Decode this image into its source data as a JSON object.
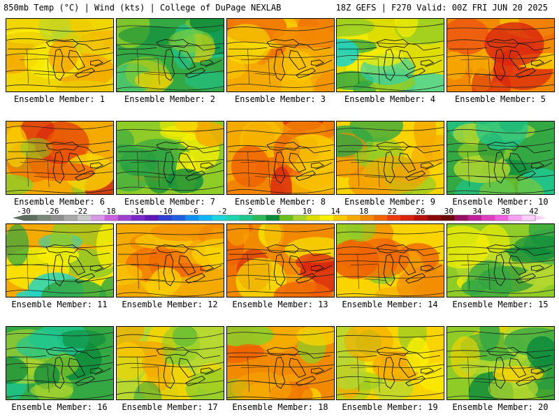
{
  "header": {
    "left": "850mb Temp (°C) | Wind (kts) | College of DuPage NEXLAB",
    "right": "18Z GEFS | F270 Valid: 00Z FRI JUN 20 2025"
  },
  "member_caption_prefix": "Ensemble Member: ",
  "members": [
    {
      "n": "1",
      "palette": [
        "#f2d600",
        "#f5aa00",
        "#ecc800",
        "#f9ef00",
        "#b6d830"
      ]
    },
    {
      "n": "2",
      "palette": [
        "#33a843",
        "#1fc68e",
        "#8fcc28",
        "#f0d000",
        "#0d8b3c"
      ]
    },
    {
      "n": "3",
      "palette": [
        "#f5aa00",
        "#f28a00",
        "#f9c800",
        "#ef6400",
        "#f6e800"
      ]
    },
    {
      "n": "4",
      "palette": [
        "#dfdc00",
        "#8fcc28",
        "#f9ef00",
        "#33a843",
        "#22d4c4"
      ]
    },
    {
      "n": "5",
      "palette": [
        "#f28a00",
        "#ef5a10",
        "#d9230f",
        "#f5aa00",
        "#f9d400"
      ]
    },
    {
      "n": "6",
      "palette": [
        "#f5aa00",
        "#8fcc28",
        "#ef6400",
        "#d9230f",
        "#f9d400"
      ]
    },
    {
      "n": "7",
      "palette": [
        "#8fcc28",
        "#33a843",
        "#f9ef00",
        "#f5aa00",
        "#0d8b3c"
      ]
    },
    {
      "n": "8",
      "palette": [
        "#f5aa00",
        "#ef6400",
        "#f28a00",
        "#f9c800",
        "#d9230f"
      ]
    },
    {
      "n": "9",
      "palette": [
        "#f9d400",
        "#8fcc28",
        "#f5aa00",
        "#f28a00",
        "#33a843"
      ]
    },
    {
      "n": "10",
      "palette": [
        "#33a843",
        "#0d8b3c",
        "#1fc68e",
        "#8fcc28",
        "#b6d830"
      ]
    },
    {
      "n": "11",
      "palette": [
        "#f5aa00",
        "#8fcc28",
        "#f9ef00",
        "#22d4c4",
        "#33a843"
      ]
    },
    {
      "n": "12",
      "palette": [
        "#f5aa00",
        "#f28a00",
        "#f9c800",
        "#ef6400",
        "#f9d400"
      ]
    },
    {
      "n": "13",
      "palette": [
        "#f28a00",
        "#ef6400",
        "#f5aa00",
        "#f9ef00",
        "#d9230f"
      ]
    },
    {
      "n": "14",
      "palette": [
        "#f9d400",
        "#f28a00",
        "#ef6400",
        "#8fcc28",
        "#f5aa00"
      ]
    },
    {
      "n": "15",
      "palette": [
        "#8fcc28",
        "#b6d830",
        "#33a843",
        "#f9ef00",
        "#0d8b3c"
      ]
    },
    {
      "n": "16",
      "palette": [
        "#33a843",
        "#0d8b3c",
        "#1fc68e",
        "#8fcc28",
        "#b6d830"
      ]
    },
    {
      "n": "17",
      "palette": [
        "#b6d830",
        "#f9d400",
        "#f5aa00",
        "#8fcc28",
        "#33a843"
      ]
    },
    {
      "n": "18",
      "palette": [
        "#f28a00",
        "#ef6400",
        "#f5aa00",
        "#f9d400",
        "#8fcc28"
      ]
    },
    {
      "n": "19",
      "palette": [
        "#f9d400",
        "#8fcc28",
        "#f5aa00",
        "#f9ef00",
        "#b6d830"
      ]
    },
    {
      "n": "20",
      "palette": [
        "#8fcc28",
        "#33a843",
        "#b6d830",
        "#f9d400",
        "#0d8b3c"
      ]
    }
  ],
  "colorbar": {
    "labels": [
      "-30",
      "-26",
      "-22",
      "-18",
      "-14",
      "-10",
      "-6",
      "-2",
      "2",
      "6",
      "10",
      "14",
      "18",
      "22",
      "26",
      "30",
      "34",
      "38",
      "42"
    ],
    "colors": [
      "#5e6e5e",
      "#778877",
      "#8f8f8f",
      "#a8a8a8",
      "#c9c9c9",
      "#d898e8",
      "#c860e0",
      "#a040d0",
      "#7a28c8",
      "#5e18b8",
      "#3040d0",
      "#2060e0",
      "#1090ee",
      "#10b4f2",
      "#20d4dc",
      "#22d4b0",
      "#1fc68e",
      "#2db85a",
      "#0d8b3c",
      "#6cbd20",
      "#a9d430",
      "#dcdc00",
      "#f9ef00",
      "#f9c800",
      "#f5aa00",
      "#f28a00",
      "#ef6400",
      "#ea3c0f",
      "#d9230f",
      "#b8120e",
      "#8c0a0a",
      "#6e0808",
      "#9a1060",
      "#c0209a",
      "#e040c0",
      "#f060e0",
      "#f8a0f0",
      "#fcd0f8"
    ]
  }
}
